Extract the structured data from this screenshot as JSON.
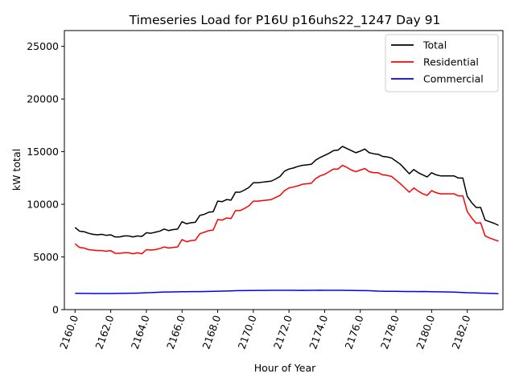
{
  "chart_data": {
    "type": "line",
    "title": "Timeseries Load for P16U p16uhs22_1247  Day 91",
    "xlabel": "Hour of Year",
    "ylabel": "kW total",
    "xlim": [
      2159.4,
      2184.0
    ],
    "ylim": [
      0,
      26500
    ],
    "xticks": [
      2160,
      2162,
      2164,
      2166,
      2168,
      2170,
      2172,
      2174,
      2176,
      2178,
      2180,
      2182
    ],
    "xtick_labels": [
      "2160.0",
      "2162.0",
      "2164.0",
      "2166.0",
      "2168.0",
      "2170.0",
      "2172.0",
      "2174.0",
      "2176.0",
      "2178.0",
      "2180.0",
      "2182.0"
    ],
    "yticks": [
      0,
      5000,
      10000,
      15000,
      20000,
      25000
    ],
    "ytick_labels": [
      "0",
      "5000",
      "10000",
      "15000",
      "20000",
      "25000"
    ],
    "legend_position": "top-right",
    "grid": false,
    "x": [
      2160.0,
      2160.25,
      2160.5,
      2160.75,
      2161.0,
      2161.25,
      2161.5,
      2161.75,
      2162.0,
      2162.25,
      2162.5,
      2162.75,
      2163.0,
      2163.25,
      2163.5,
      2163.75,
      2164.0,
      2164.25,
      2164.5,
      2164.75,
      2165.0,
      2165.25,
      2165.5,
      2165.75,
      2166.0,
      2166.25,
      2166.5,
      2166.75,
      2167.0,
      2167.25,
      2167.5,
      2167.75,
      2168.0,
      2168.25,
      2168.5,
      2168.75,
      2169.0,
      2169.25,
      2169.5,
      2169.75,
      2170.0,
      2170.25,
      2170.5,
      2170.75,
      2171.0,
      2171.25,
      2171.5,
      2171.75,
      2172.0,
      2172.25,
      2172.5,
      2172.75,
      2173.0,
      2173.25,
      2173.5,
      2173.75,
      2174.0,
      2174.25,
      2174.5,
      2174.75,
      2175.0,
      2175.25,
      2175.5,
      2175.75,
      2176.0,
      2176.25,
      2176.5,
      2176.75,
      2177.0,
      2177.25,
      2177.5,
      2177.75,
      2178.0,
      2178.25,
      2178.5,
      2178.75,
      2179.0,
      2179.25,
      2179.5,
      2179.75,
      2180.0,
      2180.25,
      2180.5,
      2180.75,
      2181.0,
      2181.25,
      2181.5,
      2181.75,
      2182.0,
      2182.25,
      2182.5,
      2182.75,
      2183.0,
      2183.25,
      2183.5,
      2183.75
    ],
    "series": [
      {
        "name": "Total",
        "color": "#000000",
        "values": [
          7800,
          7450,
          7400,
          7250,
          7150,
          7100,
          7150,
          7050,
          7100,
          6900,
          6900,
          7000,
          7000,
          6900,
          7000,
          6950,
          7300,
          7250,
          7350,
          7450,
          7650,
          7500,
          7600,
          7650,
          8350,
          8150,
          8250,
          8300,
          8950,
          9050,
          9250,
          9300,
          10300,
          10250,
          10450,
          10400,
          11150,
          11150,
          11350,
          11600,
          12050,
          12050,
          12100,
          12150,
          12200,
          12400,
          12650,
          13150,
          13350,
          13450,
          13600,
          13700,
          13750,
          13800,
          14200,
          14450,
          14650,
          14850,
          15100,
          15150,
          15500,
          15300,
          15100,
          14900,
          15050,
          15250,
          14900,
          14800,
          14750,
          14550,
          14500,
          14400,
          14100,
          13800,
          13350,
          12900,
          13300,
          13000,
          12800,
          12600,
          13000,
          12800,
          12700,
          12700,
          12700,
          12700,
          12500,
          12500,
          10750,
          10150,
          9700,
          9700,
          8500,
          8350,
          8200,
          8000
        ]
      },
      {
        "name": "Residential",
        "color": "#ff0000",
        "values": [
          6250,
          5900,
          5850,
          5700,
          5650,
          5600,
          5600,
          5550,
          5600,
          5350,
          5350,
          5400,
          5400,
          5300,
          5400,
          5300,
          5700,
          5650,
          5700,
          5800,
          5950,
          5850,
          5900,
          5950,
          6650,
          6450,
          6550,
          6600,
          7200,
          7350,
          7500,
          7550,
          8550,
          8500,
          8700,
          8650,
          9400,
          9400,
          9600,
          9850,
          10300,
          10300,
          10350,
          10400,
          10450,
          10650,
          10850,
          11300,
          11550,
          11650,
          11750,
          11900,
          11950,
          12000,
          12450,
          12700,
          12850,
          13100,
          13350,
          13350,
          13700,
          13500,
          13250,
          13100,
          13250,
          13400,
          13100,
          13000,
          13000,
          12800,
          12750,
          12650,
          12300,
          11950,
          11550,
          11150,
          11550,
          11250,
          11000,
          10850,
          11300,
          11100,
          11000,
          11000,
          11000,
          11000,
          10800,
          10800,
          9300,
          8700,
          8200,
          8250,
          7000,
          6800,
          6650,
          6500
        ]
      },
      {
        "name": "Commercial",
        "color": "#0000ff",
        "values": [
          1550,
          1550,
          1540,
          1540,
          1530,
          1530,
          1530,
          1530,
          1530,
          1540,
          1550,
          1550,
          1560,
          1560,
          1570,
          1580,
          1600,
          1610,
          1630,
          1650,
          1670,
          1670,
          1680,
          1690,
          1700,
          1700,
          1710,
          1710,
          1710,
          1720,
          1730,
          1740,
          1750,
          1760,
          1770,
          1780,
          1790,
          1800,
          1800,
          1810,
          1810,
          1820,
          1820,
          1820,
          1830,
          1830,
          1830,
          1830,
          1830,
          1830,
          1820,
          1830,
          1820,
          1830,
          1830,
          1840,
          1830,
          1830,
          1830,
          1830,
          1830,
          1820,
          1820,
          1810,
          1800,
          1800,
          1790,
          1780,
          1760,
          1750,
          1740,
          1740,
          1740,
          1730,
          1720,
          1720,
          1720,
          1710,
          1720,
          1710,
          1700,
          1690,
          1690,
          1680,
          1670,
          1660,
          1640,
          1620,
          1600,
          1590,
          1580,
          1570,
          1560,
          1550,
          1540,
          1510
        ]
      }
    ]
  }
}
